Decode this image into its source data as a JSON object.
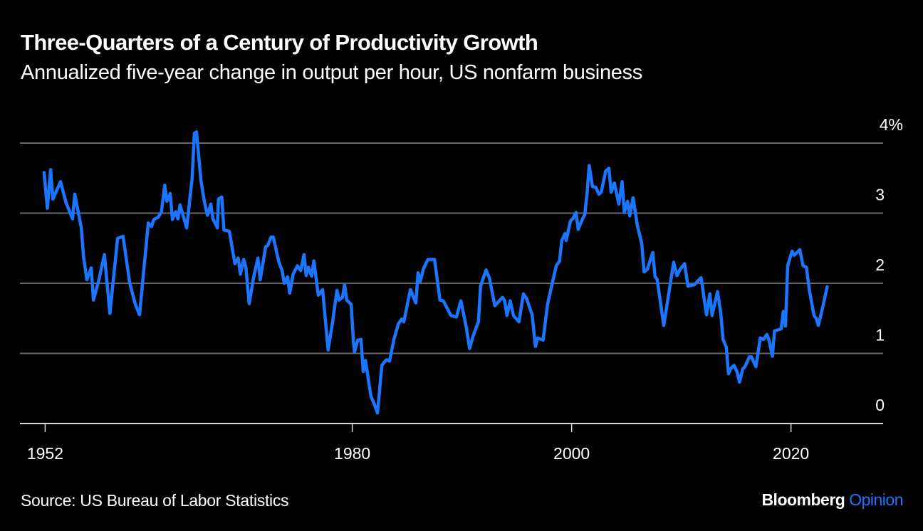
{
  "header": {
    "title": "Three-Quarters of a Century of Productivity Growth",
    "subtitle": "Annualized five-year change in output per hour, US nonfarm business"
  },
  "footer": {
    "source": "Source: US Bureau of Labor Statistics",
    "brand_primary": "Bloomberg",
    "brand_secondary": "Opinion"
  },
  "colors": {
    "background": "#000000",
    "line": "#1a75ff",
    "grid": "#666666",
    "axis": "#d9d9d9",
    "text": "#ffffff"
  },
  "chart_data": {
    "type": "line",
    "title": "Three-Quarters of a Century of Productivity Growth",
    "subtitle": "Annualized five-year change in output per hour, US nonfarm business",
    "xlabel": "",
    "ylabel": "",
    "xlim": [
      1949.7,
      2028.4
    ],
    "ylim": [
      0,
      4
    ],
    "grid": true,
    "y_axis_side": "right",
    "x_ticks": [
      {
        "value": 1952,
        "label": "1952"
      },
      {
        "value": 1980,
        "label": "1980"
      },
      {
        "value": 2000,
        "label": "2000"
      },
      {
        "value": 2020,
        "label": "2020"
      }
    ],
    "y_ticks": [
      {
        "value": 0,
        "label": "0"
      },
      {
        "value": 1,
        "label": "1"
      },
      {
        "value": 2,
        "label": "2"
      },
      {
        "value": 3,
        "label": "3"
      },
      {
        "value": 4,
        "label": "4%"
      }
    ],
    "series": [
      {
        "name": "Annualized five-year change in output per hour",
        "points": [
          [
            1951.9,
            3.58
          ],
          [
            1952.2,
            3.07
          ],
          [
            1952.5,
            3.62
          ],
          [
            1952.7,
            3.2
          ],
          [
            1953.4,
            3.45
          ],
          [
            1953.9,
            3.15
          ],
          [
            1954.5,
            2.92
          ],
          [
            1954.7,
            3.27
          ],
          [
            1955.3,
            2.79
          ],
          [
            1955.5,
            2.38
          ],
          [
            1955.8,
            2.05
          ],
          [
            1956.2,
            2.22
          ],
          [
            1956.4,
            1.76
          ],
          [
            1956.9,
            2.05
          ],
          [
            1957.4,
            2.41
          ],
          [
            1957.9,
            1.57
          ],
          [
            1958.6,
            2.64
          ],
          [
            1959.1,
            2.67
          ],
          [
            1959.7,
            2.01
          ],
          [
            1960.2,
            1.71
          ],
          [
            1960.6,
            1.55
          ],
          [
            1961.4,
            2.86
          ],
          [
            1961.7,
            2.81
          ],
          [
            1961.9,
            2.91
          ],
          [
            1962.3,
            2.94
          ],
          [
            1962.6,
            3.02
          ],
          [
            1962.9,
            3.4
          ],
          [
            1963.1,
            3.17
          ],
          [
            1963.4,
            3.28
          ],
          [
            1963.6,
            2.91
          ],
          [
            1963.9,
            3.02
          ],
          [
            1964.1,
            2.92
          ],
          [
            1964.3,
            3.12
          ],
          [
            1964.9,
            2.79
          ],
          [
            1965.4,
            3.5
          ],
          [
            1965.6,
            4.14
          ],
          [
            1965.8,
            4.16
          ],
          [
            1966.2,
            3.47
          ],
          [
            1966.5,
            3.18
          ],
          [
            1966.8,
            2.97
          ],
          [
            1967.1,
            3.13
          ],
          [
            1967.3,
            2.92
          ],
          [
            1967.7,
            2.79
          ],
          [
            1967.8,
            3.2
          ],
          [
            1968.1,
            3.23
          ],
          [
            1968.3,
            2.76
          ],
          [
            1968.8,
            2.74
          ],
          [
            1969.3,
            2.28
          ],
          [
            1969.6,
            2.36
          ],
          [
            1969.8,
            2.13
          ],
          [
            1970.1,
            2.34
          ],
          [
            1970.3,
            2.23
          ],
          [
            1970.6,
            1.71
          ],
          [
            1971.0,
            2.08
          ],
          [
            1971.4,
            2.36
          ],
          [
            1971.6,
            2.05
          ],
          [
            1972.1,
            2.52
          ],
          [
            1972.3,
            2.54
          ],
          [
            1972.6,
            2.66
          ],
          [
            1972.8,
            2.66
          ],
          [
            1973.3,
            2.31
          ],
          [
            1973.6,
            2.18
          ],
          [
            1973.8,
            2.0
          ],
          [
            1974.1,
            2.09
          ],
          [
            1974.3,
            1.86
          ],
          [
            1974.6,
            2.13
          ],
          [
            1975.0,
            2.25
          ],
          [
            1975.3,
            2.18
          ],
          [
            1975.6,
            2.41
          ],
          [
            1975.8,
            2.11
          ],
          [
            1976.0,
            2.23
          ],
          [
            1976.3,
            2.1
          ],
          [
            1976.5,
            2.32
          ],
          [
            1976.9,
            1.83
          ],
          [
            1977.3,
            1.91
          ],
          [
            1977.8,
            1.05
          ],
          [
            1978.2,
            1.44
          ],
          [
            1978.6,
            1.9
          ],
          [
            1978.8,
            1.76
          ],
          [
            1979.1,
            1.8
          ],
          [
            1979.3,
            1.98
          ],
          [
            1979.5,
            1.76
          ],
          [
            1979.9,
            1.7
          ],
          [
            1980.1,
            1.17
          ],
          [
            1980.2,
            1.02
          ],
          [
            1980.5,
            1.19
          ],
          [
            1980.8,
            1.2
          ],
          [
            1981.0,
            0.74
          ],
          [
            1981.2,
            0.9
          ],
          [
            1981.7,
            0.39
          ],
          [
            1982.0,
            0.28
          ],
          [
            1982.3,
            0.15
          ],
          [
            1982.7,
            0.83
          ],
          [
            1983.1,
            0.91
          ],
          [
            1983.4,
            0.89
          ],
          [
            1983.8,
            1.2
          ],
          [
            1984.2,
            1.42
          ],
          [
            1984.5,
            1.49
          ],
          [
            1984.7,
            1.45
          ],
          [
            1985.3,
            1.91
          ],
          [
            1985.8,
            1.72
          ],
          [
            1986.0,
            2.15
          ],
          [
            1986.2,
            2.03
          ],
          [
            1986.5,
            2.21
          ],
          [
            1986.9,
            2.34
          ],
          [
            1987.5,
            2.34
          ],
          [
            1988.0,
            1.76
          ],
          [
            1988.3,
            1.75
          ],
          [
            1989.0,
            1.54
          ],
          [
            1989.5,
            1.52
          ],
          [
            1989.9,
            1.75
          ],
          [
            1990.4,
            1.37
          ],
          [
            1990.7,
            1.07
          ],
          [
            1991.0,
            1.24
          ],
          [
            1991.5,
            1.45
          ],
          [
            1991.7,
            1.96
          ],
          [
            1992.2,
            2.19
          ],
          [
            1992.5,
            2.08
          ],
          [
            1993.0,
            1.68
          ],
          [
            1993.7,
            1.8
          ],
          [
            1993.9,
            1.75
          ],
          [
            1994.1,
            1.54
          ],
          [
            1994.4,
            1.75
          ],
          [
            1994.7,
            1.54
          ],
          [
            1995.2,
            1.45
          ],
          [
            1995.6,
            1.85
          ],
          [
            1995.9,
            1.78
          ],
          [
            1996.4,
            1.55
          ],
          [
            1996.7,
            1.1
          ],
          [
            1996.9,
            1.22
          ],
          [
            1997.4,
            1.19
          ],
          [
            1997.8,
            1.7
          ],
          [
            1998.2,
            1.98
          ],
          [
            1998.6,
            2.25
          ],
          [
            1998.9,
            2.32
          ],
          [
            1999.1,
            2.61
          ],
          [
            1999.4,
            2.71
          ],
          [
            1999.5,
            2.61
          ],
          [
            1999.9,
            2.89
          ],
          [
            2000.1,
            2.92
          ],
          [
            2000.4,
            3.01
          ],
          [
            2000.6,
            2.77
          ],
          [
            2001.0,
            2.92
          ],
          [
            2001.2,
            2.98
          ],
          [
            2001.4,
            3.27
          ],
          [
            2001.6,
            3.68
          ],
          [
            2001.9,
            3.38
          ],
          [
            2002.2,
            3.37
          ],
          [
            2002.5,
            3.27
          ],
          [
            2002.7,
            3.3
          ],
          [
            2003.1,
            3.6
          ],
          [
            2003.4,
            3.64
          ],
          [
            2003.6,
            3.3
          ],
          [
            2003.9,
            3.43
          ],
          [
            2004.3,
            3.13
          ],
          [
            2004.6,
            3.45
          ],
          [
            2004.8,
            3.01
          ],
          [
            2005.1,
            3.17
          ],
          [
            2005.3,
            2.96
          ],
          [
            2005.6,
            3.22
          ],
          [
            2006.0,
            2.82
          ],
          [
            2006.4,
            2.56
          ],
          [
            2006.6,
            2.16
          ],
          [
            2006.9,
            2.2
          ],
          [
            2007.4,
            2.44
          ],
          [
            2007.6,
            2.1
          ],
          [
            2007.8,
            2.05
          ],
          [
            2008.4,
            1.4
          ],
          [
            2009.3,
            2.3
          ],
          [
            2009.6,
            2.11
          ],
          [
            2009.9,
            2.2
          ],
          [
            2010.3,
            2.28
          ],
          [
            2010.6,
            1.96
          ],
          [
            2011.2,
            1.98
          ],
          [
            2011.8,
            2.08
          ],
          [
            2012.3,
            1.55
          ],
          [
            2012.6,
            1.85
          ],
          [
            2012.8,
            1.54
          ],
          [
            2013.3,
            1.88
          ],
          [
            2013.6,
            1.57
          ],
          [
            2013.8,
            1.2
          ],
          [
            2014.1,
            1.09
          ],
          [
            2014.3,
            0.71
          ],
          [
            2014.5,
            0.78
          ],
          [
            2014.8,
            0.83
          ],
          [
            2015.1,
            0.73
          ],
          [
            2015.3,
            0.59
          ],
          [
            2015.6,
            0.78
          ],
          [
            2015.8,
            0.81
          ],
          [
            2016.2,
            0.95
          ],
          [
            2016.4,
            0.95
          ],
          [
            2016.8,
            0.81
          ],
          [
            2017.2,
            1.22
          ],
          [
            2017.5,
            1.2
          ],
          [
            2017.8,
            1.27
          ],
          [
            2018.0,
            1.19
          ],
          [
            2018.3,
            0.96
          ],
          [
            2018.5,
            1.32
          ],
          [
            2019.1,
            1.35
          ],
          [
            2019.3,
            1.6
          ],
          [
            2019.5,
            1.39
          ],
          [
            2019.7,
            2.25
          ],
          [
            2020.1,
            2.46
          ],
          [
            2020.3,
            2.4
          ],
          [
            2020.8,
            2.48
          ],
          [
            2021.1,
            2.25
          ],
          [
            2021.4,
            2.23
          ],
          [
            2021.7,
            1.88
          ],
          [
            2022.1,
            1.54
          ],
          [
            2022.3,
            1.5
          ],
          [
            2022.5,
            1.4
          ],
          [
            2022.8,
            1.6
          ],
          [
            2023.3,
            1.95
          ]
        ]
      }
    ]
  }
}
